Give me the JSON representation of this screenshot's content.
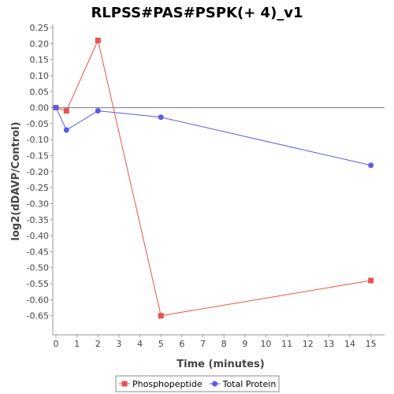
{
  "chart_data": {
    "type": "line",
    "title": "RLPSS#PAS#PSPK(+ 4)_v1",
    "xlabel": "Time (minutes)",
    "ylabel": "log2(dDAVP/Control)",
    "xlim": [
      0,
      15.5
    ],
    "ylim": [
      -0.7,
      0.25
    ],
    "x_ticks": [
      0,
      1,
      2,
      3,
      4,
      5,
      6,
      7,
      8,
      9,
      10,
      11,
      12,
      13,
      14,
      15
    ],
    "y_ticks": [
      0.25,
      0.2,
      0.15,
      0.1,
      0.05,
      0.0,
      -0.05,
      -0.1,
      -0.15,
      -0.2,
      -0.25,
      -0.3,
      -0.35,
      -0.4,
      -0.45,
      -0.5,
      -0.55,
      -0.6,
      -0.65
    ],
    "y_tick_labels": [
      "0.25",
      "0.20",
      "0.15",
      "0.10",
      "0.05",
      "0.00",
      "-0.05",
      "-0.10",
      "-0.15",
      "-0.20",
      "-0.25",
      "-0.30",
      "-0.35",
      "-0.40",
      "-0.45",
      "-0.50",
      "-0.55",
      "-0.60",
      "-0.65"
    ],
    "zero_line": true,
    "grid": false,
    "legend_position": "bottom",
    "series": [
      {
        "name": "Phosphopeptide",
        "color": "#E8534F",
        "marker": "square",
        "x": [
          0,
          0.5,
          2,
          5,
          15
        ],
        "y": [
          0.0,
          -0.01,
          0.21,
          -0.65,
          -0.54
        ]
      },
      {
        "name": "Total Protein",
        "color": "#5B5BE8",
        "marker": "circle",
        "x": [
          0,
          0.5,
          2,
          5,
          15
        ],
        "y": [
          0.0,
          -0.07,
          -0.01,
          -0.03,
          -0.18
        ]
      }
    ]
  }
}
